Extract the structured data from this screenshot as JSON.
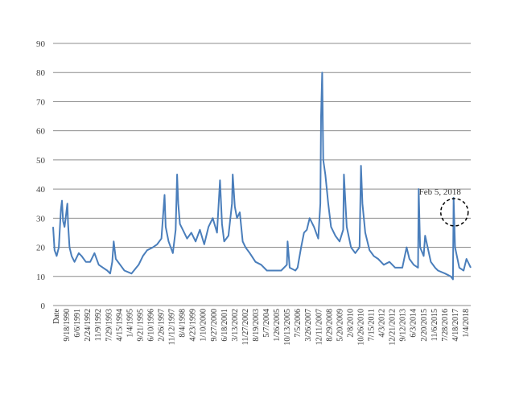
{
  "chart_data": {
    "type": "line",
    "title": "",
    "xlabel": "",
    "ylabel": "",
    "ylim": [
      0,
      90
    ],
    "yticks": [
      0,
      10,
      20,
      30,
      40,
      50,
      60,
      70,
      80,
      90
    ],
    "grid": "horizontal",
    "x_tick_labels": [
      "Date",
      "9/18/1990",
      "6/6/1991",
      "2/24/1992",
      "11/9/1992",
      "7/29/1993",
      "4/15/1994",
      "1/4/1995",
      "9/21/1995",
      "6/10/1996",
      "2/26/1997",
      "11/12/1997",
      "8/4/1998",
      "4/23/1999",
      "1/10/2000",
      "9/27/2000",
      "6/18/2001",
      "3/13/2002",
      "11/27/2002",
      "8/19/2003",
      "5/7/2004",
      "1/26/2005",
      "10/13/2005",
      "7/5/2006",
      "3/26/2007",
      "12/11/2007",
      "8/29/2008",
      "5/20/2009",
      "2/8/2010",
      "10/26/2010",
      "7/15/2011",
      "4/3/2012",
      "12/21/2012",
      "9/12/2013",
      "6/3/2014",
      "2/20/2015",
      "11/6/2015",
      "7/28/2016",
      "4/18/2017",
      "1/4/2018"
    ],
    "series": [
      {
        "color": "#4a7ebb",
        "x": [
          1990.0,
          1990.1,
          1990.25,
          1990.4,
          1990.55,
          1990.62,
          1990.7,
          1990.8,
          1990.88,
          1991.0,
          1991.05,
          1991.15,
          1991.3,
          1991.5,
          1991.8,
          1992.0,
          1992.3,
          1992.6,
          1992.9,
          1993.2,
          1993.5,
          1993.8,
          1994.0,
          1994.15,
          1994.25,
          1994.4,
          1994.7,
          1995.0,
          1995.5,
          1996.0,
          1996.3,
          1996.6,
          1997.0,
          1997.3,
          1997.6,
          1997.82,
          1997.9,
          1998.1,
          1998.4,
          1998.6,
          1998.7,
          1998.78,
          1998.9,
          1999.1,
          1999.4,
          1999.7,
          2000.0,
          2000.3,
          2000.6,
          2000.9,
          2001.2,
          2001.5,
          2001.71,
          2001.85,
          2002.0,
          2002.3,
          2002.55,
          2002.6,
          2002.75,
          2002.9,
          2003.1,
          2003.3,
          2003.5,
          2003.8,
          2004.2,
          2004.6,
          2005.0,
          2005.5,
          2006.0,
          2006.4,
          2006.45,
          2006.6,
          2007.0,
          2007.15,
          2007.4,
          2007.6,
          2007.8,
          2008.0,
          2008.3,
          2008.6,
          2008.75,
          2008.8,
          2008.88,
          2008.95,
          2009.1,
          2009.3,
          2009.5,
          2009.8,
          2010.1,
          2010.35,
          2010.4,
          2010.6,
          2010.9,
          2011.2,
          2011.5,
          2011.6,
          2011.7,
          2011.9,
          2012.2,
          2012.5,
          2012.8,
          2013.2,
          2013.6,
          2014.0,
          2014.5,
          2014.8,
          2015.0,
          2015.3,
          2015.6,
          2015.65,
          2015.75,
          2016.0,
          2016.1,
          2016.5,
          2016.8,
          2017.0,
          2017.5,
          2017.9,
          2018.05,
          2018.1,
          2018.2,
          2018.5,
          2018.8,
          2019.0,
          2019.3
        ],
        "y": [
          27,
          19,
          17,
          20,
          33,
          36,
          29,
          27,
          30,
          35,
          28,
          20,
          17,
          15,
          18,
          17,
          15,
          15,
          18,
          14,
          13,
          12,
          11,
          15,
          22,
          16,
          14,
          12,
          11,
          14,
          17,
          19,
          20,
          21,
          23,
          38,
          27,
          22,
          18,
          26,
          45,
          35,
          28,
          26,
          23,
          25,
          22,
          26,
          21,
          27,
          30,
          25,
          43,
          28,
          22,
          24,
          35,
          45,
          34,
          30,
          32,
          22,
          20,
          18,
          15,
          14,
          12,
          12,
          12,
          14,
          22,
          13,
          12,
          13,
          20,
          25,
          26,
          30,
          27,
          23,
          35,
          65,
          80,
          50,
          45,
          35,
          27,
          24,
          22,
          26,
          45,
          27,
          20,
          18,
          20,
          48,
          35,
          25,
          19,
          17,
          16,
          14,
          15,
          13,
          13,
          20,
          16,
          14,
          13,
          40,
          20,
          17,
          24,
          15,
          13,
          12,
          11,
          10,
          9,
          37,
          20,
          13,
          12,
          16,
          13
        ]
      }
    ],
    "annotations": [
      {
        "text": "Feb 5, 2018",
        "x": 2018.1,
        "y": 37
      }
    ]
  }
}
